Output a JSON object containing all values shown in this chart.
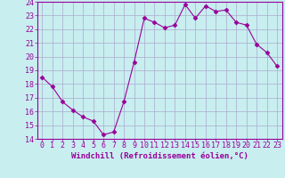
{
  "x": [
    0,
    1,
    2,
    3,
    4,
    5,
    6,
    7,
    8,
    9,
    10,
    11,
    12,
    13,
    14,
    15,
    16,
    17,
    18,
    19,
    20,
    21,
    22,
    23
  ],
  "y": [
    18.5,
    17.8,
    16.7,
    16.1,
    15.6,
    15.3,
    14.3,
    14.5,
    16.7,
    19.6,
    22.8,
    22.5,
    22.1,
    22.3,
    23.8,
    22.8,
    23.7,
    23.3,
    23.4,
    22.5,
    22.3,
    20.9,
    20.3,
    19.3
  ],
  "line_color": "#990099",
  "marker": "D",
  "markersize": 2.5,
  "linewidth": 0.8,
  "bg_color": "#c8eef0",
  "grid_color": "#aaaacc",
  "xlabel": "Windchill (Refroidissement éolien,°C)",
  "xlabel_fontsize": 6.5,
  "ylabel_ticks": [
    14,
    15,
    16,
    17,
    18,
    19,
    20,
    21,
    22,
    23,
    24
  ],
  "xlim": [
    -0.5,
    23.5
  ],
  "ylim": [
    14,
    24
  ],
  "tick_fontsize": 6,
  "spine_color": "#990099"
}
